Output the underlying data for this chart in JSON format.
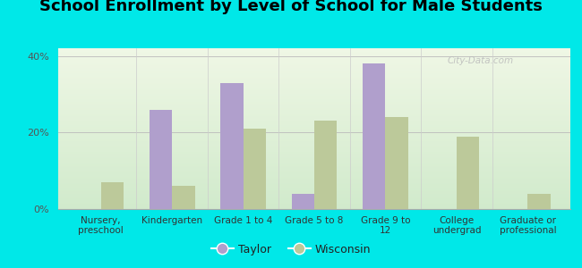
{
  "title": "School Enrollment by Level of School for Male Students",
  "categories": [
    "Nursery,\npreschool",
    "Kindergarten",
    "Grade 1 to 4",
    "Grade 5 to 8",
    "Grade 9 to\n12",
    "College\nundergrad",
    "Graduate or\nprofessional"
  ],
  "taylor": [
    0,
    26,
    33,
    4,
    38,
    0,
    0
  ],
  "wisconsin": [
    7,
    6,
    21,
    23,
    24,
    19,
    4
  ],
  "taylor_color": "#b09fcc",
  "wisconsin_color": "#bcc99a",
  "background_color": "#00e8e8",
  "ylim": [
    0,
    42
  ],
  "yticks": [
    0,
    20,
    40
  ],
  "ytick_labels": [
    "0%",
    "20%",
    "40%"
  ],
  "bar_width": 0.32,
  "title_fontsize": 13,
  "legend_labels": [
    "Taylor",
    "Wisconsin"
  ],
  "watermark": "City-Data.com"
}
